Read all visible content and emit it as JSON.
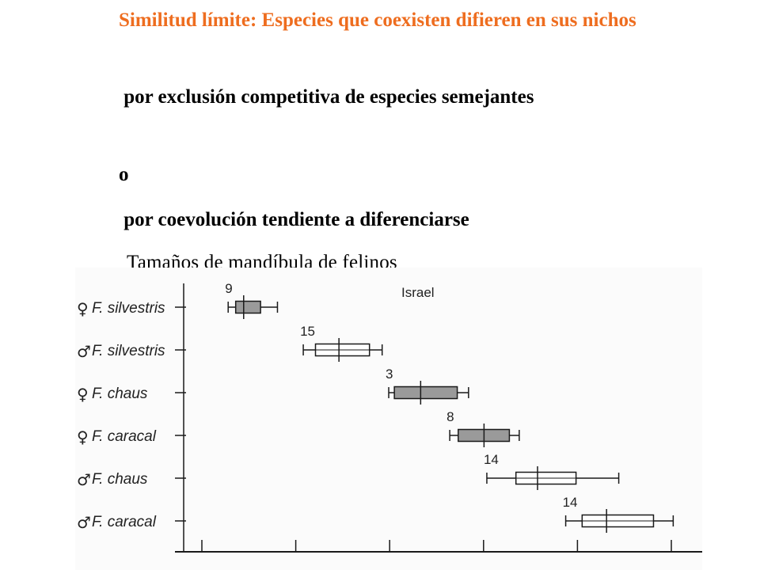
{
  "slide": {
    "title": "Similitud límite: Especies que coexisten difieren en sus nichos",
    "title_color": "#ee6d1f",
    "line1": " por exclusión competitiva de especies semejantes",
    "line2": "o",
    "line3": " por coevolución tendiente a diferenciarse",
    "caption": "Tamaños de mandíbula de felinos"
  },
  "chart_data": {
    "type": "boxplot",
    "annotation": "Israel",
    "rows": [
      {
        "sex_symbol": "♀",
        "label": "F. silvestris",
        "n": "9",
        "fill": "gray",
        "whisker_low": 0.28,
        "box_low": 0.36,
        "median": 0.445,
        "box_high": 0.625,
        "whisker_high": 0.805
      },
      {
        "sex_symbol": "♂",
        "label": "F. silvestris",
        "n": "15",
        "fill": "white",
        "whisker_low": 1.08,
        "box_low": 1.21,
        "median": 1.46,
        "box_high": 1.785,
        "whisker_high": 1.92
      },
      {
        "sex_symbol": "♀",
        "label": "F. chaus",
        "n": "3",
        "fill": "gray",
        "whisker_low": 1.99,
        "box_low": 2.05,
        "median": 2.33,
        "box_high": 2.72,
        "whisker_high": 2.84
      },
      {
        "sex_symbol": "♀",
        "label": "F. caracal",
        "n": "8",
        "fill": "gray",
        "whisker_low": 2.64,
        "box_low": 2.73,
        "median": 3.005,
        "box_high": 3.275,
        "whisker_high": 3.38
      },
      {
        "sex_symbol": "♂",
        "label": "F. chaus",
        "n": "14",
        "fill": "white",
        "whisker_low": 3.035,
        "box_low": 3.345,
        "median": 3.575,
        "box_high": 3.985,
        "whisker_high": 4.44
      },
      {
        "sex_symbol": "♂",
        "label": "F. caracal",
        "n": "14",
        "fill": "white",
        "whisker_low": 3.875,
        "box_low": 4.05,
        "median": 4.31,
        "box_high": 4.81,
        "whisker_high": 5.02
      }
    ],
    "x_ticks": [
      0,
      1,
      2,
      3,
      4,
      5
    ],
    "x_tick_labels": [],
    "xlim": [
      0,
      5.3
    ],
    "colors": {
      "gray_box": "#9a9a9a",
      "white_box": "#ffffff",
      "stroke": "#1a1a1a",
      "label": "#222222"
    }
  }
}
